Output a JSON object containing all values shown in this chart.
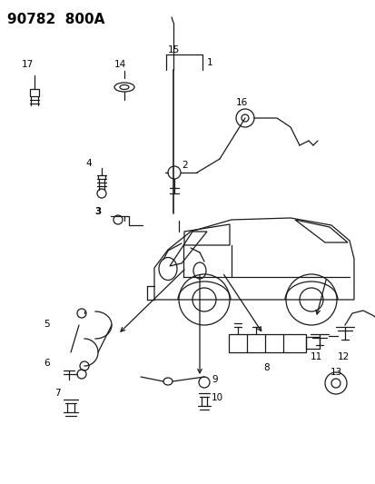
{
  "title": "90782  800A",
  "bg_color": "#ffffff",
  "line_color": "#1a1a1a",
  "title_fontsize": 11,
  "label_fontsize": 7.5,
  "fig_width": 4.14,
  "fig_height": 5.33,
  "dpi": 100
}
